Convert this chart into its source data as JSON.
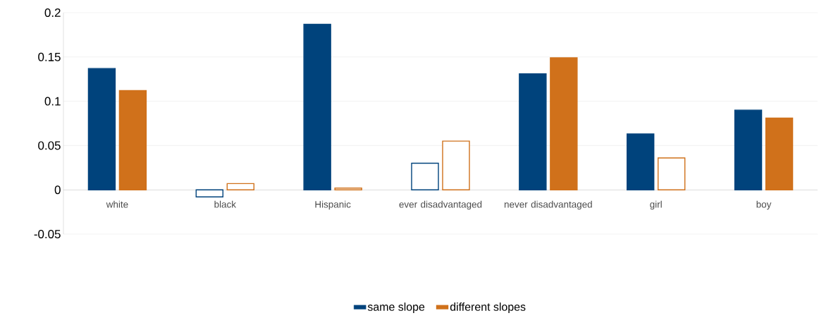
{
  "chart_data": {
    "type": "bar",
    "categories": [
      "white",
      "black",
      "Hispanic",
      "ever disadvantaged",
      "never disadvantaged",
      "girl",
      "boy"
    ],
    "series": [
      {
        "name": "same slope",
        "color": "#00437c",
        "colors": [
          "#00437c",
          "#ffffff",
          "#00437c",
          "#ffffff",
          "#00437c",
          "#00437c",
          "#00437c"
        ],
        "values": [
          0.137,
          -0.008,
          0.187,
          0.03,
          0.131,
          0.063,
          0.09
        ]
      },
      {
        "name": "different slopes",
        "color": "#d0711b",
        "colors": [
          "#d0711b",
          "#ffffff",
          "#ffffff",
          "#ffffff",
          "#d0711b",
          "#ffffff",
          "#d0711b"
        ],
        "values": [
          0.112,
          0.007,
          0.002,
          0.055,
          0.149,
          0.036,
          0.081
        ]
      }
    ],
    "ylim": [
      -0.05,
      0.2
    ],
    "yticks": [
      -0.05,
      0,
      0.05,
      0.1,
      0.15,
      0.2
    ],
    "grid": "y",
    "legend": "bottom"
  }
}
